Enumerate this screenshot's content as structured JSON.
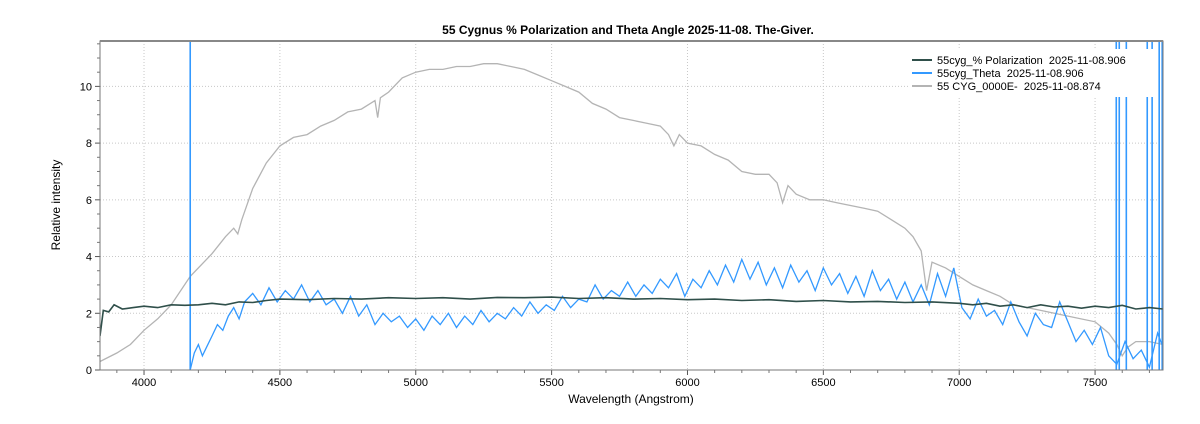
{
  "chart_data": {
    "type": "line",
    "title": "55 Cygnus % Polarization and Theta Angle  2025-11-08. The-Giver.",
    "xlabel": "Wavelength (Angstrom)",
    "ylabel": "Relative intensity",
    "xlim": [
      3838,
      7750
    ],
    "ylim": [
      0,
      11.6
    ],
    "xticks": [
      4000,
      4500,
      5000,
      5500,
      6000,
      6500,
      7000,
      7500
    ],
    "yticks": [
      0,
      2,
      4,
      6,
      8,
      10
    ],
    "grid": true,
    "legend_position": "top-right",
    "series": [
      {
        "name": "55cyg_% Polarization  2025-11-08.906",
        "color": "#2f4f4a",
        "x": [
          3838,
          3850,
          3870,
          3890,
          3920,
          3960,
          4000,
          4050,
          4100,
          4150,
          4200,
          4250,
          4300,
          4350,
          4400,
          4450,
          4500,
          4600,
          4700,
          4800,
          4900,
          5000,
          5100,
          5200,
          5300,
          5400,
          5500,
          5600,
          5700,
          5800,
          5900,
          6000,
          6100,
          6200,
          6300,
          6400,
          6500,
          6600,
          6700,
          6800,
          6900,
          7000,
          7050,
          7100,
          7150,
          7200,
          7250,
          7300,
          7350,
          7400,
          7450,
          7500,
          7550,
          7600,
          7650,
          7700,
          7750
        ],
        "y": [
          1.2,
          2.1,
          2.05,
          2.3,
          2.15,
          2.2,
          2.25,
          2.2,
          2.3,
          2.28,
          2.3,
          2.35,
          2.3,
          2.4,
          2.38,
          2.45,
          2.5,
          2.48,
          2.52,
          2.5,
          2.55,
          2.52,
          2.55,
          2.5,
          2.56,
          2.55,
          2.57,
          2.52,
          2.55,
          2.5,
          2.52,
          2.48,
          2.5,
          2.45,
          2.48,
          2.42,
          2.45,
          2.4,
          2.42,
          2.38,
          2.4,
          2.35,
          2.3,
          2.35,
          2.25,
          2.3,
          2.2,
          2.3,
          2.22,
          2.25,
          2.18,
          2.25,
          2.2,
          2.28,
          2.15,
          2.2,
          2.15
        ]
      },
      {
        "name": "55cyg_Theta  2025-11-08.906",
        "color": "#3399ff",
        "x": [
          4170,
          4185,
          4200,
          4215,
          4230,
          4250,
          4270,
          4290,
          4310,
          4330,
          4350,
          4370,
          4400,
          4430,
          4460,
          4490,
          4520,
          4550,
          4580,
          4610,
          4640,
          4670,
          4700,
          4730,
          4760,
          4790,
          4820,
          4850,
          4880,
          4910,
          4940,
          4970,
          5000,
          5030,
          5060,
          5090,
          5120,
          5150,
          5180,
          5210,
          5240,
          5270,
          5300,
          5330,
          5360,
          5390,
          5420,
          5450,
          5480,
          5510,
          5540,
          5570,
          5600,
          5630,
          5660,
          5690,
          5720,
          5750,
          5780,
          5810,
          5840,
          5870,
          5900,
          5930,
          5960,
          5990,
          6020,
          6050,
          6080,
          6110,
          6140,
          6170,
          6200,
          6230,
          6260,
          6290,
          6320,
          6350,
          6380,
          6410,
          6440,
          6470,
          6500,
          6530,
          6560,
          6590,
          6620,
          6650,
          6680,
          6710,
          6740,
          6770,
          6800,
          6830,
          6860,
          6890,
          6920,
          6950,
          6980,
          7010,
          7040,
          7070,
          7100,
          7130,
          7160,
          7190,
          7220,
          7250,
          7280,
          7310,
          7340,
          7370,
          7400,
          7430,
          7460,
          7490,
          7520,
          7550,
          7580,
          7610,
          7640,
          7670,
          7700,
          7730,
          7750
        ],
        "y": [
          0.0,
          0.6,
          0.9,
          0.5,
          0.8,
          1.2,
          1.6,
          1.4,
          1.9,
          2.2,
          1.8,
          2.4,
          2.7,
          2.3,
          2.9,
          2.4,
          2.8,
          2.5,
          3.0,
          2.4,
          2.8,
          2.3,
          2.5,
          2.0,
          2.6,
          1.9,
          2.3,
          1.6,
          2.0,
          1.7,
          1.9,
          1.5,
          1.8,
          1.4,
          1.9,
          1.6,
          2.0,
          1.5,
          1.9,
          1.6,
          2.1,
          1.7,
          2.0,
          1.8,
          2.2,
          1.9,
          2.4,
          2.0,
          2.3,
          2.1,
          2.6,
          2.2,
          2.5,
          2.4,
          3.0,
          2.5,
          2.8,
          2.6,
          3.1,
          2.6,
          3.0,
          2.7,
          3.2,
          2.9,
          3.4,
          2.6,
          3.2,
          2.9,
          3.5,
          3.0,
          3.7,
          3.1,
          3.9,
          3.2,
          3.8,
          3.0,
          3.6,
          2.9,
          3.7,
          3.1,
          3.5,
          2.8,
          3.6,
          3.0,
          3.4,
          2.7,
          3.3,
          2.6,
          3.5,
          2.8,
          3.2,
          2.5,
          3.1,
          2.4,
          3.0,
          2.3,
          3.4,
          2.6,
          3.6,
          2.2,
          1.8,
          2.5,
          1.9,
          2.1,
          1.6,
          2.4,
          1.7,
          1.2,
          2.0,
          1.6,
          1.5,
          2.4,
          1.7,
          1.0,
          1.4,
          0.9,
          1.5,
          0.5,
          0.2,
          1.0,
          0.4,
          0.7,
          0.1,
          1.3,
          0.8
        ],
        "spikes_x": [
          4170,
          7578,
          7589,
          7615,
          7692,
          7710,
          7736,
          7747
        ]
      },
      {
        "name": "55 CYG_0000E-  2025-11-08.874",
        "color": "#b4b4b4",
        "x": [
          3838,
          3900,
          3950,
          4000,
          4050,
          4100,
          4170,
          4250,
          4300,
          4330,
          4345,
          4360,
          4400,
          4450,
          4500,
          4550,
          4600,
          4650,
          4700,
          4750,
          4800,
          4850,
          4860,
          4870,
          4900,
          4950,
          5000,
          5050,
          5100,
          5150,
          5200,
          5250,
          5300,
          5350,
          5400,
          5450,
          5500,
          5550,
          5600,
          5650,
          5700,
          5750,
          5800,
          5850,
          5900,
          5930,
          5950,
          5970,
          6000,
          6050,
          6100,
          6150,
          6200,
          6250,
          6300,
          6330,
          6350,
          6370,
          6400,
          6450,
          6500,
          6550,
          6600,
          6650,
          6700,
          6750,
          6800,
          6830,
          6860,
          6880,
          6900,
          6950,
          7000,
          7050,
          7100,
          7150,
          7200,
          7300,
          7400,
          7500,
          7550,
          7580,
          7600,
          7620,
          7650,
          7700,
          7750
        ],
        "y": [
          0.3,
          0.6,
          0.9,
          1.4,
          1.8,
          2.3,
          3.3,
          4.1,
          4.7,
          5.0,
          4.8,
          5.3,
          6.4,
          7.3,
          7.9,
          8.2,
          8.3,
          8.6,
          8.8,
          9.1,
          9.2,
          9.5,
          8.9,
          9.6,
          9.8,
          10.3,
          10.5,
          10.6,
          10.6,
          10.7,
          10.7,
          10.8,
          10.8,
          10.7,
          10.6,
          10.4,
          10.2,
          10.0,
          9.8,
          9.4,
          9.2,
          8.9,
          8.8,
          8.7,
          8.6,
          8.3,
          7.9,
          8.3,
          8.0,
          7.9,
          7.6,
          7.4,
          7.0,
          6.9,
          6.9,
          6.6,
          5.9,
          6.5,
          6.2,
          6.0,
          6.0,
          5.9,
          5.8,
          5.7,
          5.6,
          5.3,
          5.0,
          4.7,
          4.2,
          2.8,
          3.8,
          3.6,
          3.3,
          3.0,
          2.8,
          2.6,
          2.3,
          2.1,
          1.9,
          1.7,
          1.3,
          0.9,
          0.5,
          0.8,
          1.0,
          1.0,
          0.9
        ]
      }
    ]
  }
}
